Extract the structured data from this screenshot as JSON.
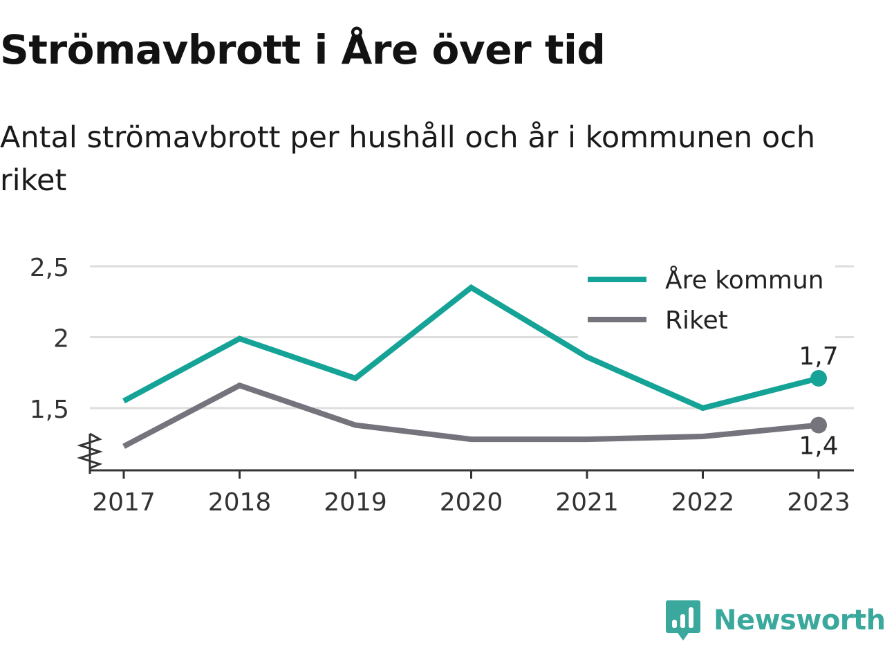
{
  "title": "Strömavbrott i Åre över tid",
  "subtitle": "Antal strömavbrott per hushåll och år i kommunen och riket",
  "brand": {
    "name": "Newsworthy",
    "icon": "bar-chart-speech-bubble-icon"
  },
  "colors": {
    "are": "#14a396",
    "riket": "#75737b",
    "grid": "#dddddd",
    "axis": "#333333"
  },
  "chart_data": {
    "type": "line",
    "x": [
      "2017",
      "2018",
      "2019",
      "2020",
      "2021",
      "2022",
      "2023"
    ],
    "series": [
      {
        "name": "Åre kommun",
        "values": [
          1.55,
          1.99,
          1.71,
          2.35,
          1.86,
          1.5,
          1.71
        ],
        "end_label": "1,7",
        "end_label_position": "above"
      },
      {
        "name": "Riket",
        "values": [
          1.23,
          1.66,
          1.38,
          1.28,
          1.28,
          1.3,
          1.38
        ],
        "end_label": "1,4",
        "end_label_position": "below"
      }
    ],
    "yticks": [
      {
        "value": 1.5,
        "label": "1,5"
      },
      {
        "value": 2,
        "label": "2"
      },
      {
        "value": 2.5,
        "label": "2,5"
      }
    ],
    "ylim": [
      1.07,
      2.5
    ],
    "y_axis_break": true,
    "grid": true,
    "legend": "top-right"
  }
}
